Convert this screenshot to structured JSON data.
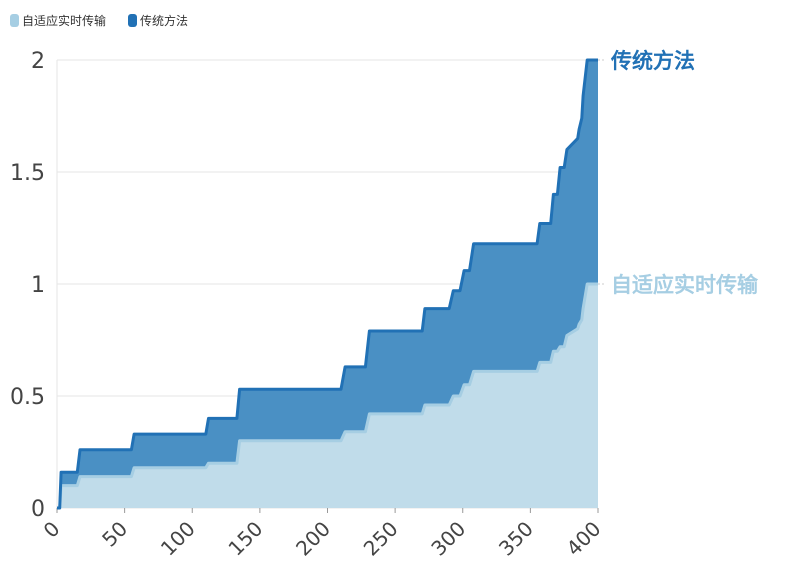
{
  "colors": {
    "traditional": "#2171b5",
    "traditional_fill": "#4a90c4",
    "adaptive": "#a6cee3",
    "adaptive_fill": "#c0dcea",
    "grid": "#e6e6e6",
    "axis_text": "#444444"
  },
  "chart_data": {
    "type": "area",
    "stacked": true,
    "xlim": [
      0,
      400
    ],
    "ylim": [
      0,
      2
    ],
    "xticks": [
      0,
      50,
      100,
      150,
      200,
      250,
      300,
      350,
      400
    ],
    "yticks": [
      0,
      0.5,
      1,
      1.5,
      2
    ],
    "ytick_labels": [
      "0",
      "0.5",
      "1",
      "1.5",
      "2"
    ],
    "grid": true,
    "legend_position": "top-left",
    "series": [
      {
        "name": "自适应实时传输",
        "x": [
          0,
          2,
          3,
          15,
          17,
          55,
          57,
          110,
          112,
          133,
          135,
          210,
          213,
          228,
          231,
          270,
          272,
          290,
          293,
          298,
          301,
          305,
          308,
          355,
          357,
          365,
          367,
          370,
          372,
          375,
          377,
          385,
          386,
          388,
          389,
          392,
          400
        ],
        "y": [
          0.0,
          0.0,
          0.1,
          0.1,
          0.14,
          0.14,
          0.18,
          0.18,
          0.2,
          0.2,
          0.3,
          0.3,
          0.34,
          0.34,
          0.42,
          0.42,
          0.46,
          0.46,
          0.5,
          0.5,
          0.55,
          0.55,
          0.61,
          0.61,
          0.65,
          0.65,
          0.7,
          0.7,
          0.72,
          0.72,
          0.77,
          0.8,
          0.82,
          0.84,
          0.89,
          1.0,
          1.0
        ]
      },
      {
        "name": "传统方法",
        "x": [
          0,
          2,
          3,
          15,
          17,
          55,
          57,
          110,
          112,
          133,
          135,
          210,
          213,
          228,
          231,
          270,
          272,
          290,
          293,
          298,
          301,
          305,
          308,
          355,
          357,
          365,
          367,
          370,
          372,
          375,
          377,
          385,
          386,
          388,
          389,
          392,
          400
        ],
        "y": [
          0.0,
          0.0,
          0.06,
          0.06,
          0.12,
          0.12,
          0.15,
          0.15,
          0.2,
          0.2,
          0.23,
          0.23,
          0.29,
          0.29,
          0.37,
          0.37,
          0.43,
          0.43,
          0.47,
          0.47,
          0.51,
          0.51,
          0.57,
          0.57,
          0.62,
          0.62,
          0.7,
          0.7,
          0.8,
          0.8,
          0.83,
          0.85,
          0.87,
          0.9,
          0.95,
          1.0,
          1.0
        ]
      }
    ],
    "end_labels": [
      "传统方法",
      "自适应实时传输"
    ]
  }
}
